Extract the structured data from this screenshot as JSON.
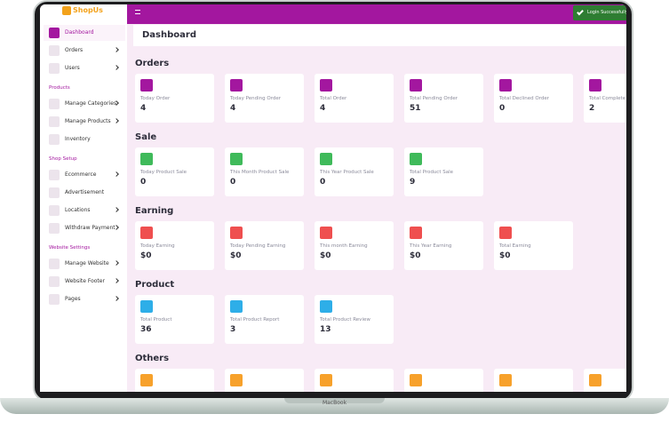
{
  "brand": "ShopUs",
  "toast": "Login Successfully",
  "page_title": "Dashboard",
  "device": "MacBook",
  "sidebar": [
    {
      "items": [
        {
          "label": "Dashboard",
          "active": true
        },
        {
          "label": "Orders",
          "arrow": true
        },
        {
          "label": "Users",
          "arrow": true
        }
      ]
    },
    {
      "title": "Products",
      "items": [
        {
          "label": "Manage Categories",
          "arrow": true
        },
        {
          "label": "Manage Products",
          "arrow": true
        },
        {
          "label": "Inventory"
        }
      ]
    },
    {
      "title": "Shop Setup",
      "items": [
        {
          "label": "Ecommerce",
          "arrow": true
        },
        {
          "label": "Advertisement"
        },
        {
          "label": "Locations",
          "arrow": true
        },
        {
          "label": "Withdraw Payment",
          "arrow": true
        }
      ]
    },
    {
      "title": "Website Settings",
      "items": [
        {
          "label": "Manage Website",
          "arrow": true
        },
        {
          "label": "Website Footer",
          "arrow": true
        },
        {
          "label": "Pages",
          "arrow": true
        }
      ]
    }
  ],
  "sections": [
    {
      "title": "Orders",
      "color": "#a3179f",
      "cards": [
        {
          "label": "Today Order",
          "value": 4
        },
        {
          "label": "Today Pending Order",
          "value": 4
        },
        {
          "label": "Total Order",
          "value": 4
        },
        {
          "label": "Total Pending Order",
          "value": 51
        },
        {
          "label": "Total Declined Order",
          "value": 0
        },
        {
          "label": "Total Complete Order",
          "value": 2
        }
      ]
    },
    {
      "title": "Sale",
      "color": "#3fba5a",
      "cards": [
        {
          "label": "Today Product Sale",
          "value": 0
        },
        {
          "label": "This Month Product Sale",
          "value": 0
        },
        {
          "label": "This Year Product Sale",
          "value": 0
        },
        {
          "label": "Total Product Sale",
          "value": 9
        }
      ]
    },
    {
      "title": "Earning",
      "color": "#ef4f4f",
      "cards": [
        {
          "label": "Today Earning",
          "value": "$0"
        },
        {
          "label": "Today Pending Earning",
          "value": "$0"
        },
        {
          "label": "This month Earning",
          "value": "$0"
        },
        {
          "label": "This Year Earning",
          "value": "$0"
        },
        {
          "label": "Total Earning",
          "value": "$0"
        }
      ]
    },
    {
      "title": "Product",
      "color": "#2eaee8",
      "cards": [
        {
          "label": "Total Product",
          "value": 36
        },
        {
          "label": "Total Product Report",
          "value": 3
        },
        {
          "label": "Total Product Review",
          "value": 13
        }
      ]
    },
    {
      "title": "Others",
      "color": "#f7a12b"
    }
  ]
}
